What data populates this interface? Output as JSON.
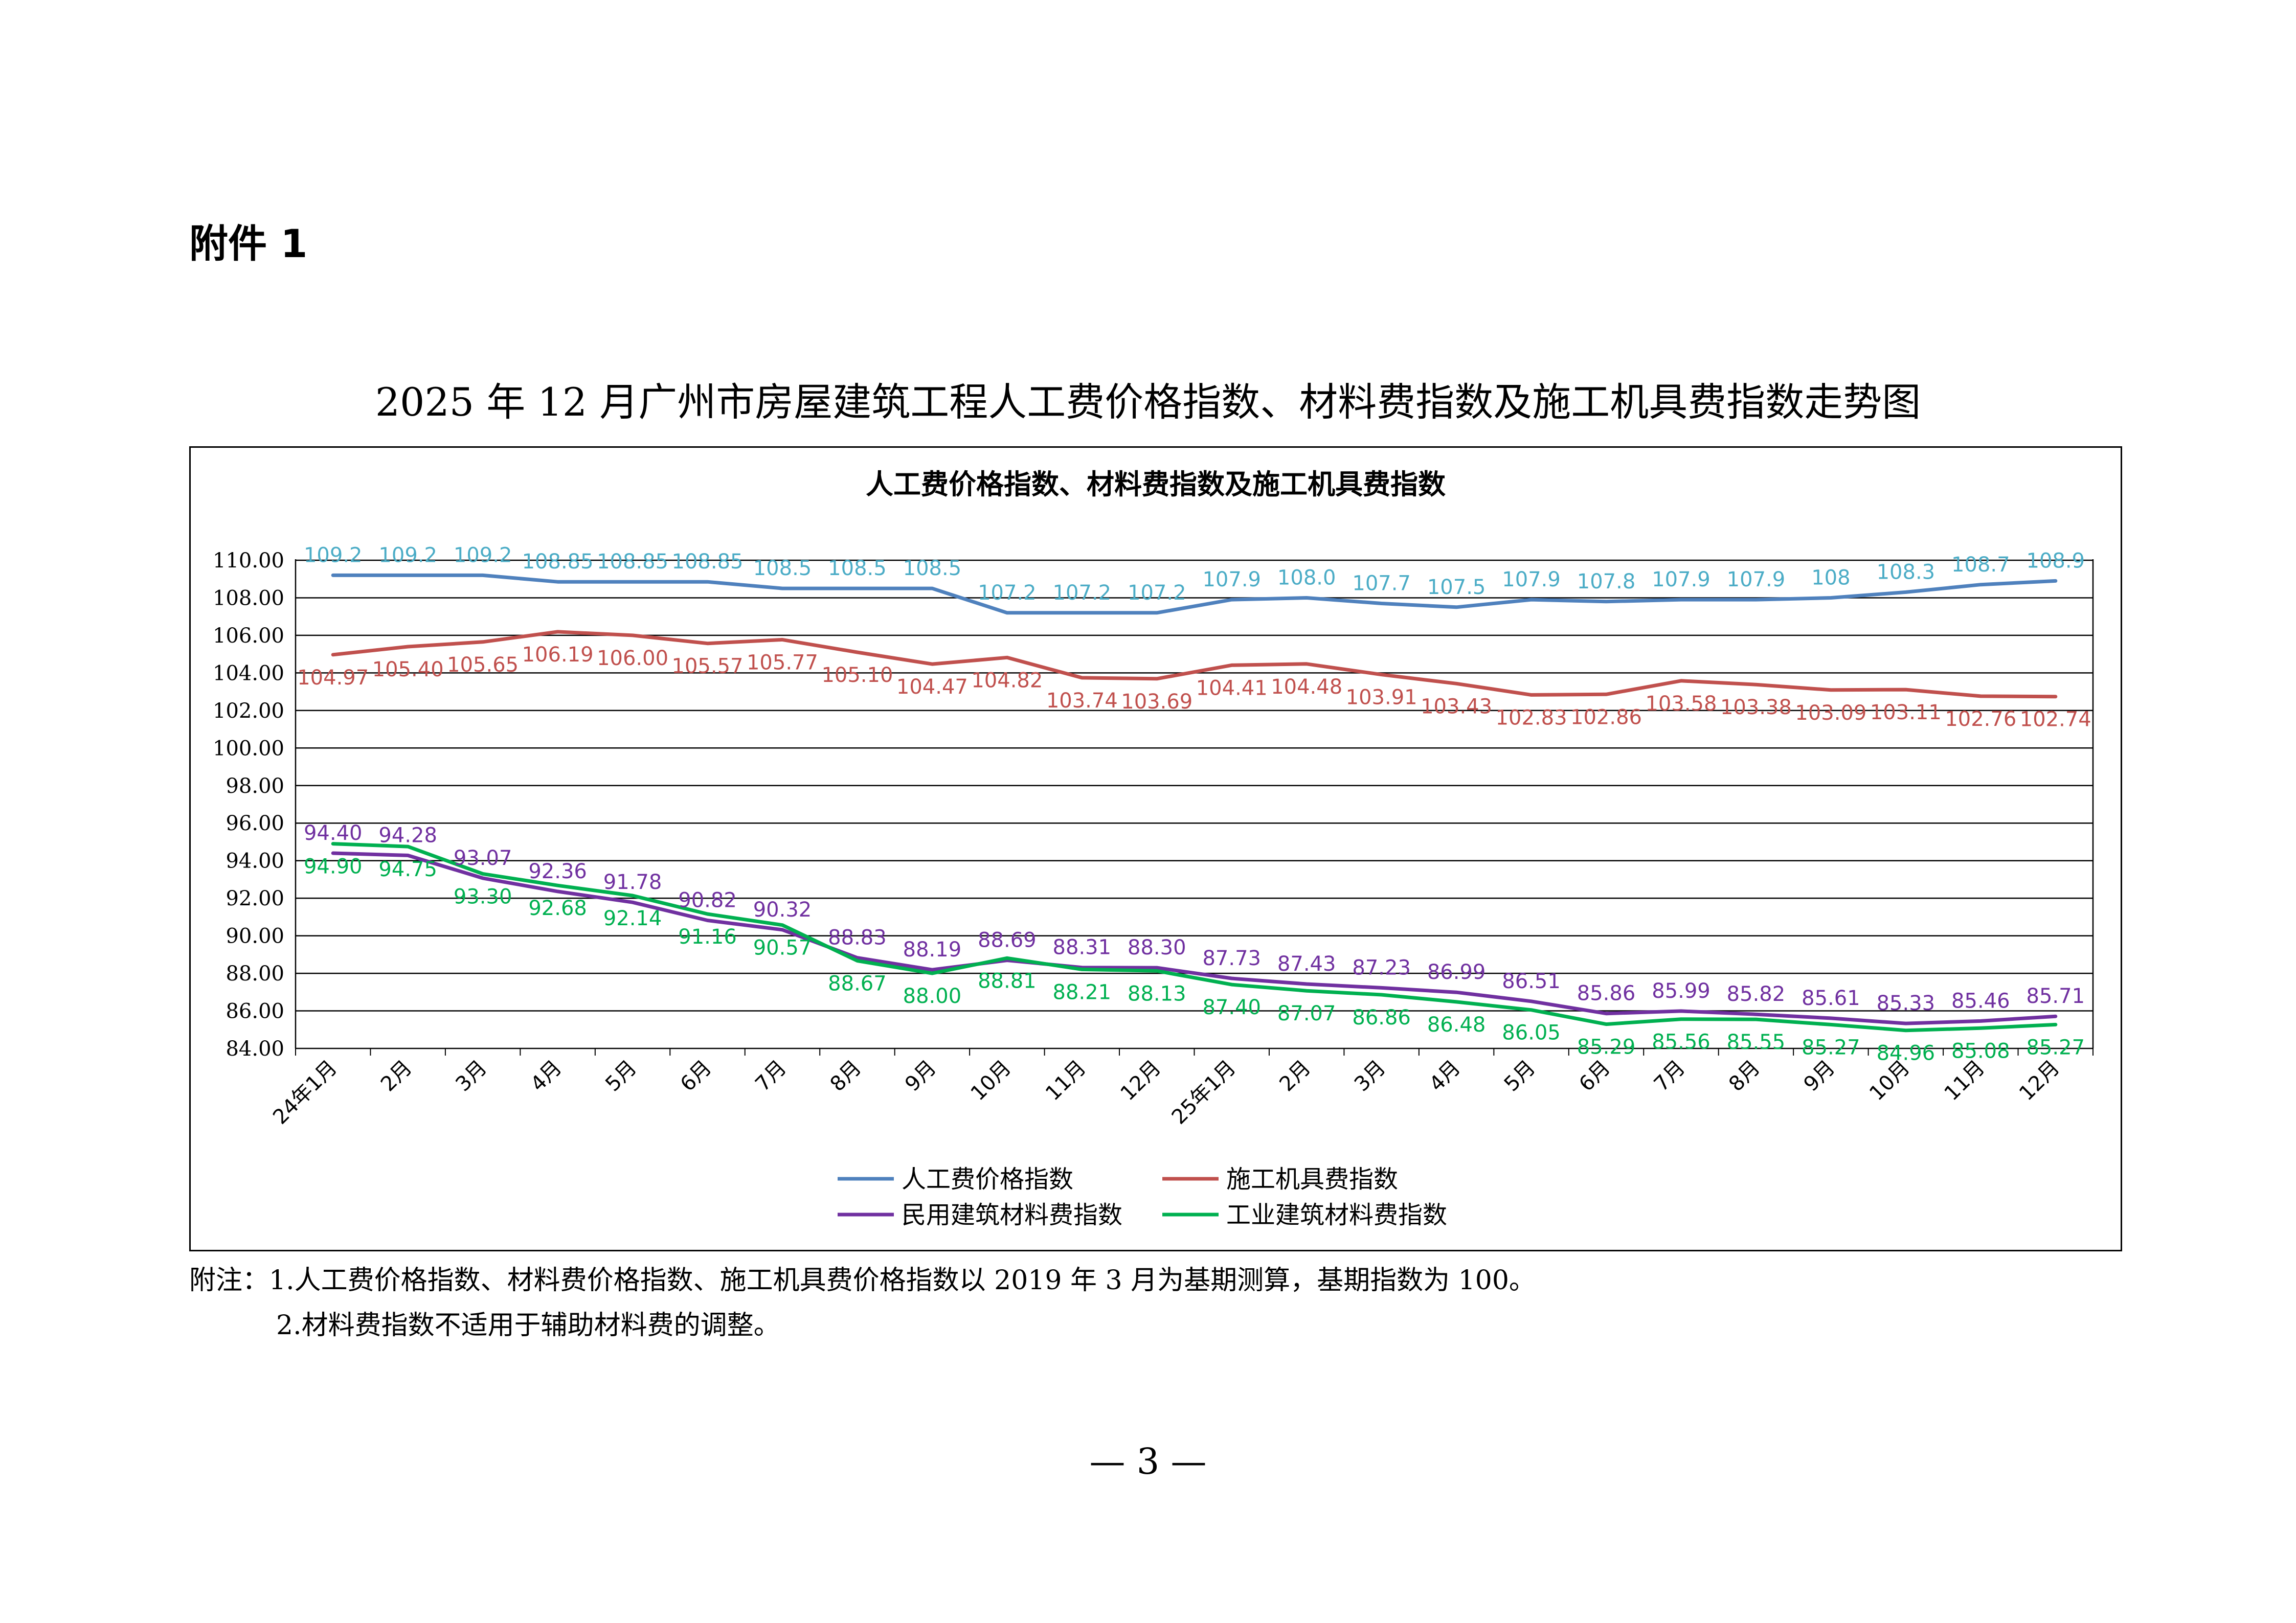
{
  "attachment": "附件 1",
  "doc_title": "2025 年 12 月广州市房屋建筑工程人工费价格指数、材料费指数及施工机具费指数走势图",
  "notes": {
    "line1": "附注：1.人工费价格指数、材料费价格指数、施工机具费价格指数以 2019 年 3 月为基期测算，基期指数为 100。",
    "line2": "2.材料费指数不适用于辅助材料费的调整。"
  },
  "page_number": "— 3 —",
  "chart_data": {
    "type": "line",
    "title": "人工费价格指数、材料费指数及施工机具费指数",
    "categories": [
      "24年1月",
      "2月",
      "3月",
      "4月",
      "5月",
      "6月",
      "7月",
      "8月",
      "9月",
      "10月",
      "11月",
      "12月",
      "25年1月",
      "2月",
      "3月",
      "4月",
      "5月",
      "6月",
      "7月",
      "8月",
      "9月",
      "10月",
      "11月",
      "12月"
    ],
    "ylim": [
      84,
      110
    ],
    "yticks": [
      "84.00",
      "86.00",
      "88.00",
      "90.00",
      "92.00",
      "94.00",
      "96.00",
      "98.00",
      "100.00",
      "102.00",
      "104.00",
      "106.00",
      "108.00",
      "110.00"
    ],
    "grid": true,
    "legend": "bottom",
    "series": [
      {
        "name": "人工费价格指数",
        "color": "#4F81BD",
        "label_color": "#4BACC6",
        "label_pos": "above",
        "values": [
          109.2,
          109.2,
          109.2,
          108.85,
          108.85,
          108.85,
          108.5,
          108.5,
          108.5,
          107.2,
          107.2,
          107.2,
          107.9,
          108.0,
          107.7,
          107.5,
          107.9,
          107.8,
          107.9,
          107.9,
          108,
          108.3,
          108.7,
          108.9
        ],
        "labels": [
          "109.2",
          "109.2",
          "109.2",
          "108.85",
          "108.85",
          "108.85",
          "108.5",
          "108.5",
          "108.5",
          "107.2",
          "107.2",
          "107.2",
          "107.9",
          "108.0",
          "107.7",
          "107.5",
          "107.9",
          "107.8",
          "107.9",
          "107.9",
          "108",
          "108.3",
          "108.7",
          "108.9"
        ]
      },
      {
        "name": "施工机具费指数",
        "color": "#C0504D",
        "label_color": "#C0504D",
        "label_pos": "below",
        "values": [
          104.97,
          105.4,
          105.65,
          106.19,
          106.0,
          105.57,
          105.77,
          105.1,
          104.47,
          104.82,
          103.74,
          103.69,
          104.41,
          104.48,
          103.91,
          103.43,
          102.83,
          102.86,
          103.58,
          103.38,
          103.09,
          103.11,
          102.76,
          102.74
        ],
        "labels": [
          "104.97",
          "105.40",
          "105.65",
          "106.19",
          "106.00",
          "105.57",
          "105.77",
          "105.10",
          "104.47",
          "104.82",
          "103.74",
          "103.69",
          "104.41",
          "104.48",
          "103.91",
          "103.43",
          "102.83",
          "102.86",
          "103.58",
          "103.38",
          "103.09",
          "103.11",
          "102.76",
          "102.74"
        ]
      },
      {
        "name": "民用建筑材料费指数",
        "color": "#7030A0",
        "label_color": "#7030A0",
        "label_pos": "above",
        "values": [
          94.4,
          94.28,
          93.07,
          92.36,
          91.78,
          90.82,
          90.32,
          88.83,
          88.19,
          88.69,
          88.31,
          88.3,
          87.73,
          87.43,
          87.23,
          86.99,
          86.51,
          85.86,
          85.99,
          85.82,
          85.61,
          85.33,
          85.46,
          85.71
        ],
        "labels": [
          "94.40",
          "94.28",
          "93.07",
          "92.36",
          "91.78",
          "90.82",
          "90.32",
          "88.83",
          "88.19",
          "88.69",
          "88.31",
          "88.30",
          "87.73",
          "87.43",
          "87.23",
          "86.99",
          "86.51",
          "85.86",
          "85.99",
          "85.82",
          "85.61",
          "85.33",
          "85.46",
          "85.71"
        ]
      },
      {
        "name": "工业建筑材料费指数",
        "color": "#00B050",
        "label_color": "#00B050",
        "label_pos": "below",
        "values": [
          94.9,
          94.75,
          93.3,
          92.68,
          92.14,
          91.16,
          90.57,
          88.67,
          88.0,
          88.81,
          88.21,
          88.13,
          87.4,
          87.07,
          86.86,
          86.48,
          86.05,
          85.29,
          85.56,
          85.55,
          85.27,
          84.96,
          85.08,
          85.27
        ],
        "labels": [
          "94.90",
          "94.75",
          "93.30",
          "92.68",
          "92.14",
          "91.16",
          "90.57",
          "88.67",
          "88.00",
          "88.81",
          "88.21",
          "88.13",
          "87.40",
          "87.07",
          "86.86",
          "86.48",
          "86.05",
          "85.29",
          "85.56",
          "85.55",
          "85.27",
          "84.96",
          "85.08",
          "85.27"
        ]
      }
    ]
  }
}
